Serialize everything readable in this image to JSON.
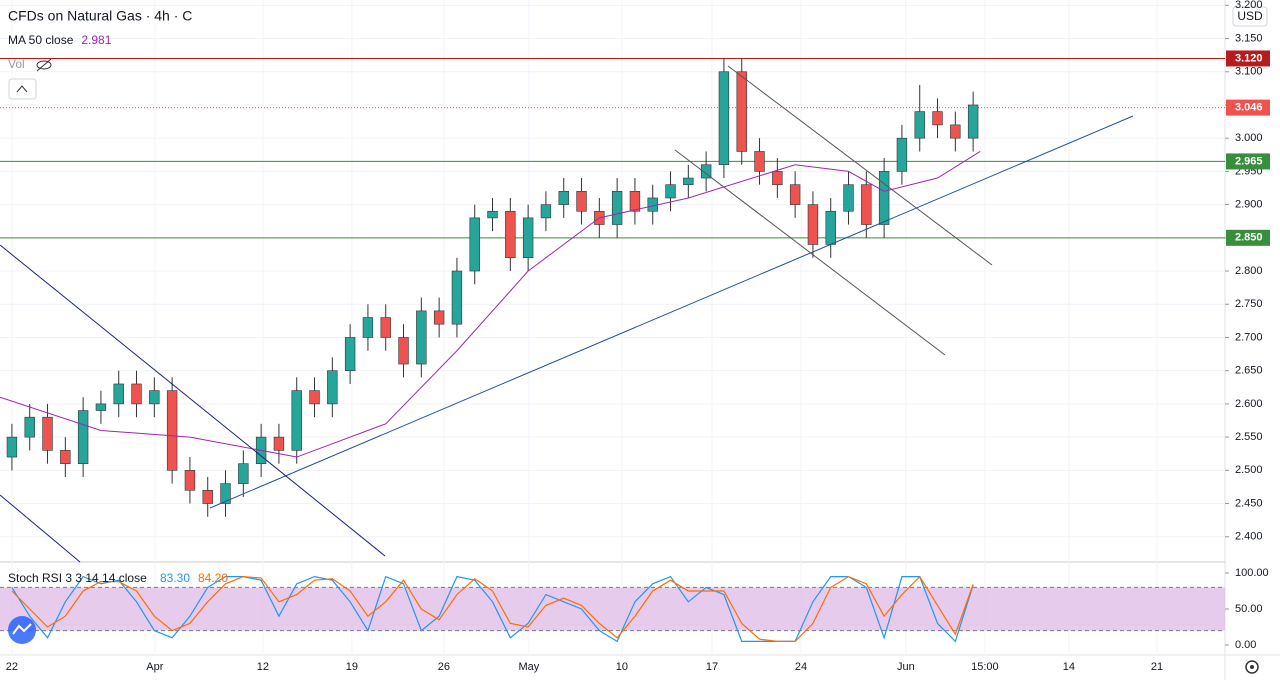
{
  "chart_data": [
    {
      "type": "candlestick",
      "title": "CFDs on Natural Gas · 4h · C",
      "volume_label": "Vol",
      "currency": "USD",
      "up_color": "#26a69a",
      "down_color": "#ef5350",
      "x": [
        0,
        1,
        2,
        3,
        4,
        5,
        6,
        7,
        8,
        9,
        10,
        11,
        12,
        13,
        14,
        15,
        16,
        17,
        18,
        19,
        20,
        21,
        22,
        23,
        24,
        25,
        26,
        27,
        28,
        29,
        30,
        31,
        32,
        33,
        34,
        35,
        36,
        37,
        38,
        39,
        40,
        41,
        42,
        43,
        44,
        45,
        46,
        47,
        48,
        49,
        50,
        51,
        52,
        53,
        54
      ],
      "open": [
        2.52,
        2.55,
        2.58,
        2.53,
        2.51,
        2.59,
        2.6,
        2.63,
        2.6,
        2.62,
        2.5,
        2.47,
        2.45,
        2.48,
        2.51,
        2.55,
        2.53,
        2.62,
        2.6,
        2.65,
        2.7,
        2.73,
        2.7,
        2.66,
        2.74,
        2.72,
        2.8,
        2.88,
        2.89,
        2.82,
        2.88,
        2.9,
        2.92,
        2.89,
        2.87,
        2.92,
        2.89,
        2.91,
        2.93,
        2.94,
        2.96,
        3.1,
        2.98,
        2.95,
        2.93,
        2.9,
        2.84,
        2.89,
        2.93,
        2.87,
        2.95,
        3.0,
        3.04,
        3.02,
        3.0
      ],
      "high": [
        2.57,
        2.6,
        2.6,
        2.55,
        2.61,
        2.62,
        2.65,
        2.65,
        2.64,
        2.64,
        2.52,
        2.49,
        2.5,
        2.53,
        2.57,
        2.57,
        2.64,
        2.64,
        2.67,
        2.72,
        2.75,
        2.75,
        2.72,
        2.76,
        2.76,
        2.82,
        2.9,
        2.91,
        2.91,
        2.9,
        2.92,
        2.94,
        2.94,
        2.91,
        2.94,
        2.94,
        2.93,
        2.95,
        2.96,
        2.98,
        3.12,
        3.12,
        3.0,
        2.97,
        2.95,
        2.92,
        2.91,
        2.95,
        2.95,
        2.97,
        3.02,
        3.08,
        3.06,
        3.04,
        3.07
      ],
      "low": [
        2.5,
        2.53,
        2.51,
        2.49,
        2.49,
        2.57,
        2.58,
        2.58,
        2.58,
        2.48,
        2.45,
        2.43,
        2.43,
        2.46,
        2.49,
        2.51,
        2.51,
        2.58,
        2.58,
        2.63,
        2.68,
        2.68,
        2.64,
        2.64,
        2.7,
        2.7,
        2.78,
        2.86,
        2.8,
        2.8,
        2.86,
        2.88,
        2.87,
        2.85,
        2.85,
        2.87,
        2.87,
        2.89,
        2.91,
        2.92,
        2.94,
        2.96,
        2.93,
        2.91,
        2.88,
        2.82,
        2.82,
        2.87,
        2.85,
        2.85,
        2.93,
        2.98,
        3.0,
        2.98,
        2.98
      ],
      "close": [
        2.55,
        2.58,
        2.53,
        2.51,
        2.59,
        2.6,
        2.63,
        2.6,
        2.62,
        2.5,
        2.47,
        2.45,
        2.48,
        2.51,
        2.55,
        2.53,
        2.62,
        2.6,
        2.65,
        2.7,
        2.73,
        2.7,
        2.66,
        2.74,
        2.72,
        2.8,
        2.88,
        2.89,
        2.82,
        2.88,
        2.9,
        2.92,
        2.89,
        2.87,
        2.92,
        2.89,
        2.91,
        2.93,
        2.94,
        2.96,
        3.1,
        2.98,
        2.95,
        2.93,
        2.9,
        2.84,
        2.89,
        2.93,
        2.87,
        2.95,
        3.0,
        3.04,
        3.02,
        3.0,
        3.05
      ],
      "ma": {
        "name": "MA 50 close",
        "value_label": "2.981",
        "color": "#9c27b0",
        "x": [
          -0.67,
          5,
          10,
          16,
          21,
          25,
          29,
          33,
          38,
          44,
          47,
          49,
          52,
          54.4
        ],
        "values": [
          2.61,
          2.56,
          2.55,
          2.52,
          2.57,
          2.68,
          2.8,
          2.88,
          2.91,
          2.96,
          2.95,
          2.92,
          2.94,
          2.98
        ]
      },
      "levels": [
        {
          "value": 3.12,
          "label": "3.120",
          "color": "#b71c1c"
        },
        {
          "value": 3.046,
          "label": "3.046",
          "color": "#ef5350",
          "style": "dotted"
        },
        {
          "value": 2.965,
          "label": "2.965",
          "color": "#388e3c"
        },
        {
          "value": 2.85,
          "label": "2.850",
          "color": "#388e3c"
        }
      ],
      "xlim": [
        -0.67,
        68.15
      ],
      "ylim": [
        2.362,
        3.208
      ],
      "yticks": [
        {
          "value": 2.4,
          "label": "2.400"
        },
        {
          "value": 2.45,
          "label": "2.450"
        },
        {
          "value": 2.5,
          "label": "2.500"
        },
        {
          "value": 2.55,
          "label": "2.550"
        },
        {
          "value": 2.6,
          "label": "2.600"
        },
        {
          "value": 2.65,
          "label": "2.650"
        },
        {
          "value": 2.7,
          "label": "2.700"
        },
        {
          "value": 2.75,
          "label": "2.750"
        },
        {
          "value": 2.8,
          "label": "2.800"
        },
        {
          "value": 2.85,
          "label": "2.850"
        },
        {
          "value": 2.9,
          "label": "2.900"
        },
        {
          "value": 2.95,
          "label": "2.950"
        },
        {
          "value": 3.0,
          "label": "3.000"
        },
        {
          "value": 3.05,
          "label": "3.050"
        },
        {
          "value": 3.1,
          "label": "3.100"
        },
        {
          "value": 3.15,
          "label": "3.150"
        },
        {
          "value": 3.2,
          "label": "3.200"
        }
      ],
      "xticks": [
        {
          "value": 0,
          "label": "22"
        },
        {
          "value": 8.03,
          "label": "Apr"
        },
        {
          "value": 14.1,
          "label": "12"
        },
        {
          "value": 19.1,
          "label": "19"
        },
        {
          "value": 24.27,
          "label": "26"
        },
        {
          "value": 29.04,
          "label": "May"
        },
        {
          "value": 34.27,
          "label": "10"
        },
        {
          "value": 39.33,
          "label": "17"
        },
        {
          "value": 44.33,
          "label": "24"
        },
        {
          "value": 50.22,
          "label": "Jun"
        },
        {
          "value": 54.66,
          "label": "15:00"
        },
        {
          "value": 59.38,
          "label": "14"
        },
        {
          "value": 64.33,
          "label": "21"
        }
      ]
    },
    {
      "type": "stoch",
      "title": "Stoch RSI 3 3 14 14 close",
      "ylim": [
        -13.9,
        115.3
      ],
      "band": [
        20,
        80
      ],
      "yticks": [
        {
          "value": 100,
          "label": "100.00"
        },
        {
          "value": 50,
          "label": "50.00"
        },
        {
          "value": 0,
          "label": "0.00"
        }
      ],
      "series": [
        {
          "color": "#2196f3",
          "value_label": "83.30",
          "values": [
            80,
            40,
            10,
            60,
            95,
            85,
            90,
            60,
            20,
            10,
            40,
            80,
            95,
            95,
            90,
            40,
            85,
            95,
            90,
            60,
            20,
            95,
            85,
            20,
            40,
            95,
            90,
            60,
            10,
            30,
            70,
            60,
            50,
            20,
            5,
            60,
            85,
            95,
            60,
            80,
            70,
            5,
            5,
            5,
            5,
            60,
            95,
            95,
            80,
            10,
            95,
            95,
            30,
            5,
            83.3
          ]
        },
        {
          "color": "#ff6d00",
          "value_label": "84.20",
          "values": [
            75,
            50,
            25,
            40,
            75,
            88,
            88,
            75,
            40,
            20,
            30,
            60,
            85,
            95,
            93,
            60,
            70,
            90,
            92,
            75,
            40,
            60,
            90,
            50,
            35,
            70,
            92,
            75,
            30,
            25,
            55,
            65,
            55,
            30,
            10,
            40,
            75,
            90,
            75,
            75,
            75,
            30,
            8,
            5,
            5,
            30,
            80,
            95,
            85,
            40,
            70,
            95,
            55,
            15,
            84.2
          ]
        }
      ]
    }
  ]
}
